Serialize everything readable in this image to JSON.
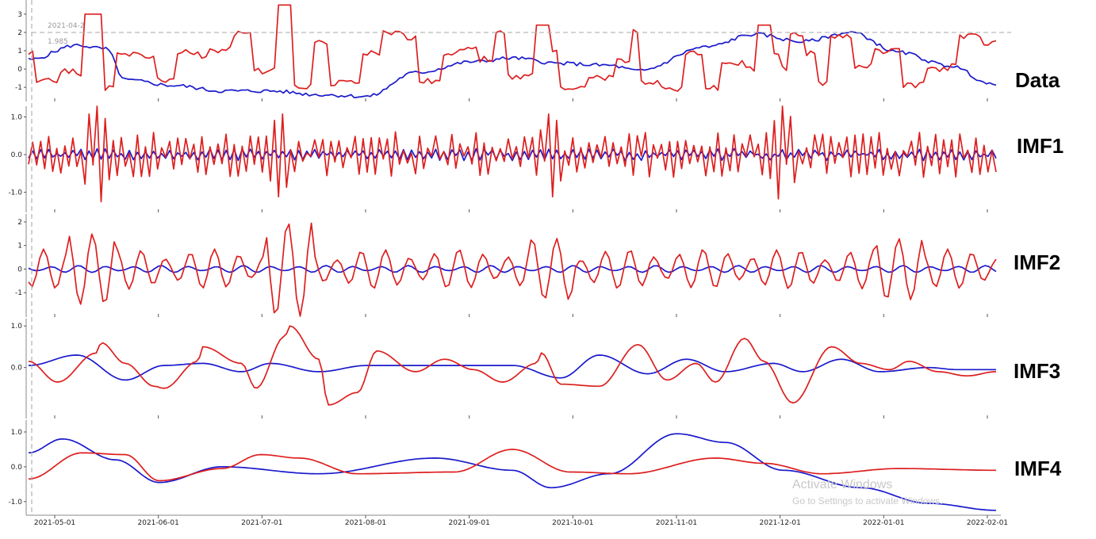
{
  "chart_data": {
    "type": "line",
    "x_ticks": [
      "2021-05-01",
      "2021-06-01",
      "2021-07-01",
      "2021-08-01",
      "2021-09-01",
      "2021-10-01",
      "2021-11-01",
      "2021-12-01",
      "2022-01-01",
      "2022-02-01"
    ],
    "annotation": {
      "date": "2021-04-2",
      "value": "1.985",
      "level": 2
    },
    "colors": {
      "series_a": "#dd1f1f",
      "series_b": "#1a1acc",
      "dashed": "#b0b0b0",
      "axis": "#888888"
    },
    "panels": [
      {
        "label": "Data",
        "yticks": [
          "3",
          "2",
          "1",
          "0",
          "-1"
        ],
        "yvals": [
          3,
          2,
          1,
          0,
          -1
        ],
        "ylim": [
          -1.6,
          3.6
        ],
        "spec": {
          "red": {
            "type": "step",
            "base": 0,
            "amp": 1.0,
            "seed": 11,
            "len": 6,
            "spikes": [
              [
                0.065,
                3.0,
                0.01
              ],
              [
                0.263,
                3.5,
                0.008
              ],
              [
                0.53,
                2.4,
                0.008
              ],
              [
                0.76,
                2.4,
                0.008
              ]
            ]
          },
          "blue": {
            "type": "walk",
            "seed": 5,
            "pts": [
              [
                0,
                0.5
              ],
              [
                0.05,
                1.3
              ],
              [
                0.08,
                1.1
              ],
              [
                0.1,
                -0.6
              ],
              [
                0.15,
                -0.9
              ],
              [
                0.2,
                -1.2
              ],
              [
                0.25,
                -1.2
              ],
              [
                0.3,
                -1.4
              ],
              [
                0.35,
                -1.5
              ],
              [
                0.4,
                -0.2
              ],
              [
                0.46,
                0.4
              ],
              [
                0.5,
                0.6
              ],
              [
                0.55,
                0.3
              ],
              [
                0.6,
                0.2
              ],
              [
                0.63,
                -0.1
              ],
              [
                0.7,
                1.2
              ],
              [
                0.75,
                1.9
              ],
              [
                0.8,
                1.5
              ],
              [
                0.85,
                2.0
              ],
              [
                0.9,
                0.9
              ],
              [
                0.95,
                0.2
              ],
              [
                1.0,
                -0.9
              ]
            ],
            "noise": 0.2
          }
        }
      },
      {
        "label": "IMF1",
        "yticks": [
          "1.0",
          "0.0",
          "-1.0"
        ],
        "yvals": [
          1,
          0,
          -1
        ],
        "ylim": [
          -1.45,
          1.2
        ],
        "spec": {
          "red": {
            "type": "osc",
            "seed": 3,
            "amp": 0.45,
            "period": 6,
            "bursts": [
              [
                0.07,
                1.4
              ],
              [
                0.26,
                1.0
              ],
              [
                0.54,
                1.0
              ],
              [
                0.78,
                1.3
              ]
            ]
          },
          "blue": {
            "type": "osc",
            "seed": 8,
            "amp": 0.12,
            "period": 4,
            "bursts": []
          }
        }
      },
      {
        "label": "IMF2",
        "yticks": [
          "2",
          "1",
          "0",
          "-1"
        ],
        "yvals": [
          2,
          1,
          0,
          -1
        ],
        "ylim": [
          -1.9,
          2.2
        ],
        "spec": {
          "red": {
            "type": "wave",
            "seed": 4,
            "amp": 0.85,
            "period": 18,
            "bursts": [
              [
                0.065,
                1.5
              ],
              [
                0.27,
                2.0
              ],
              [
                0.54,
                1.3
              ],
              [
                0.9,
                1.3
              ]
            ]
          },
          "blue": {
            "type": "wave",
            "seed": 9,
            "amp": 0.15,
            "period": 16,
            "bursts": []
          }
        }
      },
      {
        "label": "IMF3",
        "yticks": [
          "1.0",
          "0.0"
        ],
        "yvals": [
          1,
          0
        ],
        "ylim": [
          -1.15,
          1.1
        ],
        "spec": {
          "red": {
            "type": "smooth",
            "pts": [
              [
                0,
                0.15
              ],
              [
                0.03,
                -0.35
              ],
              [
                0.07,
                0.35
              ],
              [
                0.075,
                0.6
              ],
              [
                0.1,
                0.1
              ],
              [
                0.13,
                -0.45
              ],
              [
                0.14,
                -0.5
              ],
              [
                0.175,
                0.15
              ],
              [
                0.18,
                0.5
              ],
              [
                0.22,
                0.1
              ],
              [
                0.235,
                -0.5
              ],
              [
                0.265,
                0.75
              ],
              [
                0.27,
                1.0
              ],
              [
                0.3,
                0.2
              ],
              [
                0.31,
                -0.9
              ],
              [
                0.34,
                -0.6
              ],
              [
                0.36,
                0.4
              ],
              [
                0.4,
                -0.1
              ],
              [
                0.43,
                0.2
              ],
              [
                0.46,
                -0.05
              ],
              [
                0.49,
                -0.35
              ],
              [
                0.525,
                0.1
              ],
              [
                0.53,
                0.35
              ],
              [
                0.55,
                -0.4
              ],
              [
                0.59,
                -0.45
              ],
              [
                0.63,
                0.55
              ],
              [
                0.66,
                -0.3
              ],
              [
                0.69,
                0.1
              ],
              [
                0.71,
                -0.35
              ],
              [
                0.74,
                0.7
              ],
              [
                0.76,
                0.15
              ],
              [
                0.79,
                -0.85
              ],
              [
                0.83,
                0.5
              ],
              [
                0.86,
                0.1
              ],
              [
                0.89,
                -0.05
              ],
              [
                0.91,
                0.15
              ],
              [
                0.94,
                -0.1
              ],
              [
                0.97,
                -0.2
              ],
              [
                1.0,
                -0.1
              ]
            ]
          },
          "blue": {
            "type": "smooth",
            "pts": [
              [
                0,
                0.05
              ],
              [
                0.05,
                0.3
              ],
              [
                0.1,
                -0.3
              ],
              [
                0.14,
                0.05
              ],
              [
                0.18,
                0.1
              ],
              [
                0.22,
                -0.1
              ],
              [
                0.25,
                0.1
              ],
              [
                0.3,
                -0.1
              ],
              [
                0.35,
                0.05
              ],
              [
                0.4,
                0.05
              ],
              [
                0.45,
                0.05
              ],
              [
                0.5,
                0.05
              ],
              [
                0.55,
                -0.25
              ],
              [
                0.59,
                0.3
              ],
              [
                0.64,
                -0.15
              ],
              [
                0.68,
                0.2
              ],
              [
                0.72,
                -0.1
              ],
              [
                0.77,
                0.1
              ],
              [
                0.8,
                -0.1
              ],
              [
                0.84,
                0.2
              ],
              [
                0.88,
                -0.1
              ],
              [
                0.93,
                0.0
              ],
              [
                0.96,
                -0.05
              ],
              [
                1.0,
                -0.05
              ]
            ]
          }
        }
      },
      {
        "label": "IMF4",
        "yticks": [
          "1.0",
          "0.0",
          "-1.0"
        ],
        "yvals": [
          1,
          0,
          -1
        ],
        "ylim": [
          -1.3,
          1.25
        ],
        "spec": {
          "red": {
            "type": "smooth",
            "pts": [
              [
                0,
                -0.35
              ],
              [
                0.055,
                0.4
              ],
              [
                0.1,
                0.35
              ],
              [
                0.135,
                -0.4
              ],
              [
                0.2,
                -0.05
              ],
              [
                0.24,
                0.35
              ],
              [
                0.28,
                0.25
              ],
              [
                0.34,
                -0.2
              ],
              [
                0.44,
                -0.15
              ],
              [
                0.5,
                0.5
              ],
              [
                0.56,
                -0.15
              ],
              [
                0.62,
                -0.2
              ],
              [
                0.71,
                0.25
              ],
              [
                0.76,
                0.1
              ],
              [
                0.82,
                -0.2
              ],
              [
                0.9,
                -0.05
              ],
              [
                1.0,
                -0.1
              ]
            ]
          },
          "blue": {
            "type": "smooth",
            "pts": [
              [
                0,
                0.4
              ],
              [
                0.035,
                0.8
              ],
              [
                0.09,
                0.2
              ],
              [
                0.135,
                -0.45
              ],
              [
                0.2,
                0.0
              ],
              [
                0.3,
                -0.2
              ],
              [
                0.42,
                0.25
              ],
              [
                0.5,
                -0.1
              ],
              [
                0.54,
                -0.6
              ],
              [
                0.6,
                -0.2
              ],
              [
                0.67,
                0.95
              ],
              [
                0.72,
                0.7
              ],
              [
                0.78,
                -0.1
              ],
              [
                0.86,
                -0.6
              ],
              [
                0.93,
                -1.05
              ],
              [
                1.0,
                -1.25
              ]
            ]
          }
        }
      }
    ]
  },
  "watermark": {
    "title": "Activate Windows",
    "subtitle": "Go to Settings to activate Windows."
  }
}
